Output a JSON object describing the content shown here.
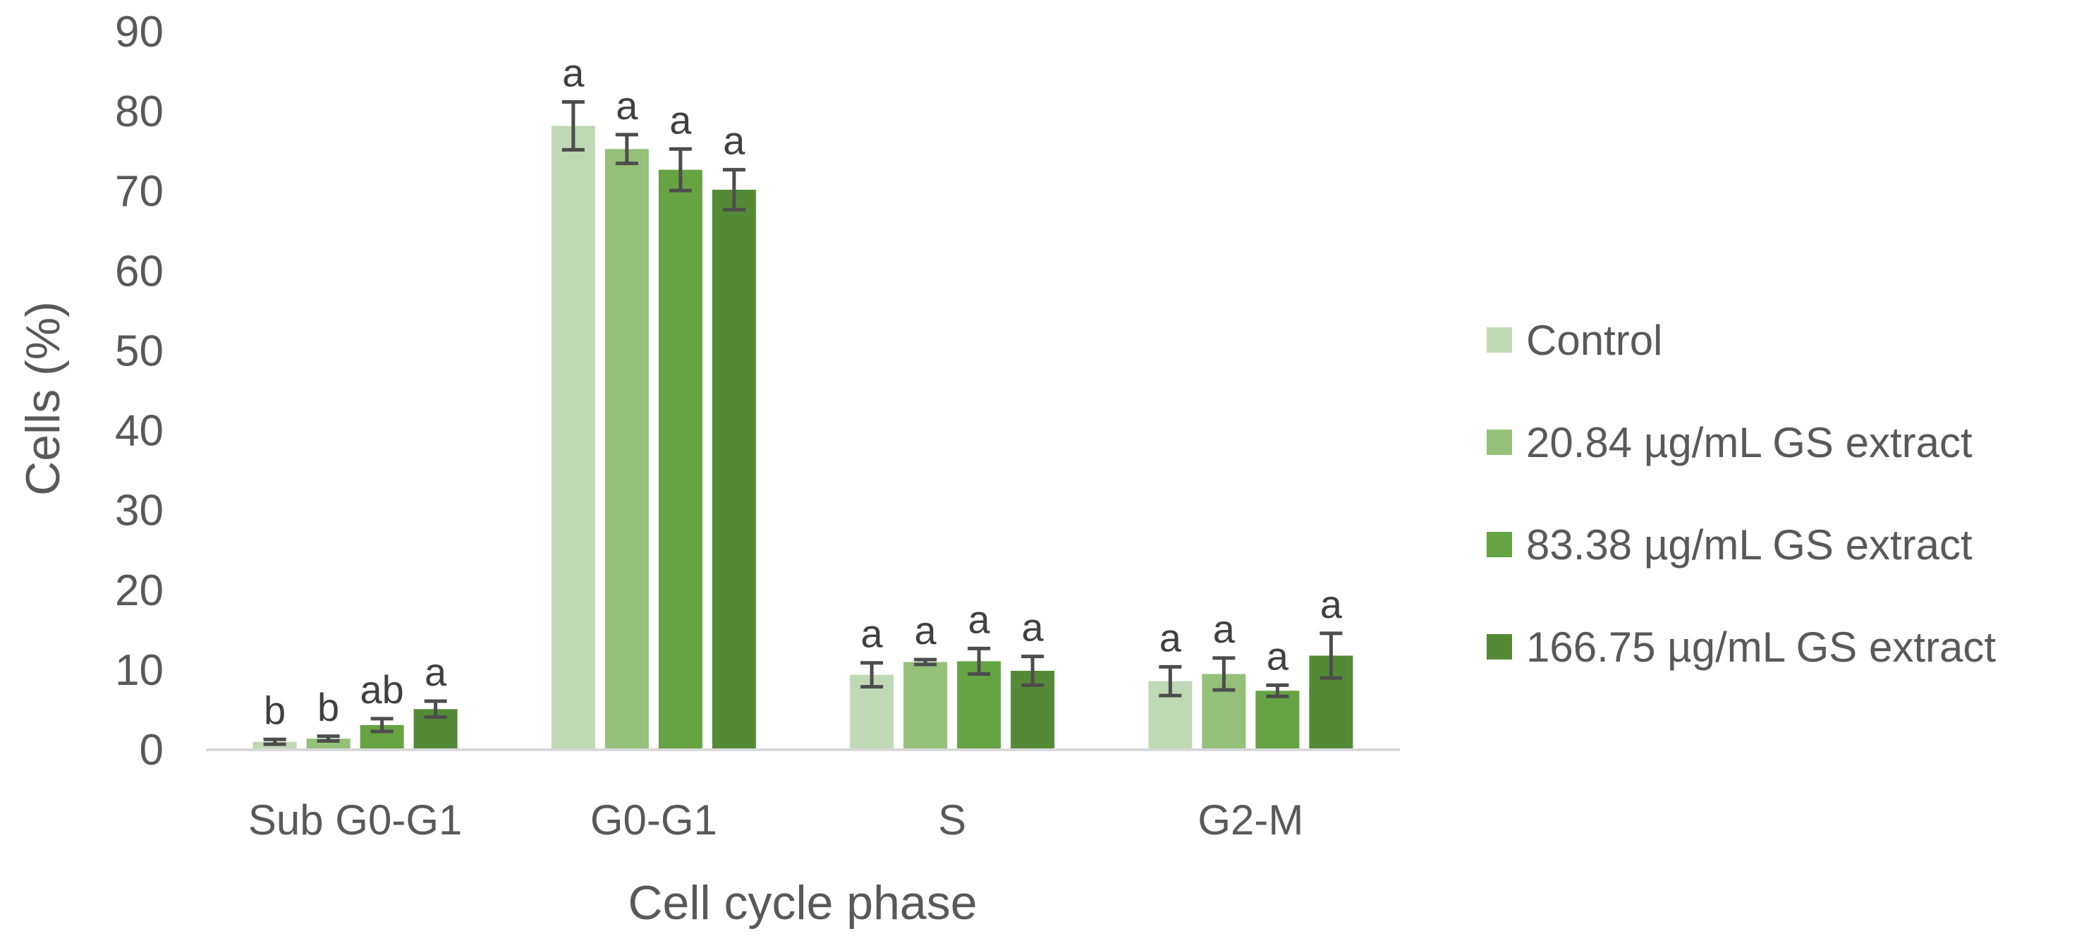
{
  "chart_data": {
    "type": "bar",
    "title": "",
    "xlabel": "Cell cycle phase",
    "ylabel": "Cells (%)",
    "ylim": [
      0,
      90
    ],
    "yticks": [
      0,
      10,
      20,
      30,
      40,
      50,
      60,
      70,
      80,
      90
    ],
    "grid": false,
    "legend_position": "right",
    "categories": [
      "Sub G0-G1",
      "G0-G1",
      "S",
      "G2-M"
    ],
    "series": [
      {
        "name": "Control",
        "color": "#c0d9b5",
        "values": [
          1.0,
          78.2,
          9.4,
          8.6
        ],
        "errors": [
          0.3,
          3.0,
          1.5,
          1.8
        ],
        "labels": [
          "b",
          "a",
          "a",
          "a"
        ]
      },
      {
        "name": "20.84 µg/mL GS extract",
        "color": "#94c07a",
        "values": [
          1.4,
          75.3,
          11.0,
          9.5
        ],
        "errors": [
          0.3,
          1.8,
          0.3,
          2.0
        ],
        "labels": [
          "b",
          "a",
          "a",
          "a"
        ]
      },
      {
        "name": "83.38 µg/mL GS extract",
        "color": "#66a343",
        "values": [
          3.1,
          72.7,
          11.1,
          7.4
        ],
        "errors": [
          0.8,
          2.6,
          1.6,
          0.7
        ],
        "labels": [
          "ab",
          "a",
          "a",
          "a"
        ]
      },
      {
        "name": "166.75 µg/mL GS extract",
        "color": "#548a36",
        "values": [
          5.1,
          70.2,
          9.9,
          11.8
        ],
        "errors": [
          1.0,
          2.5,
          1.8,
          2.8
        ],
        "labels": [
          "a",
          "a",
          "a",
          "a"
        ]
      }
    ]
  }
}
